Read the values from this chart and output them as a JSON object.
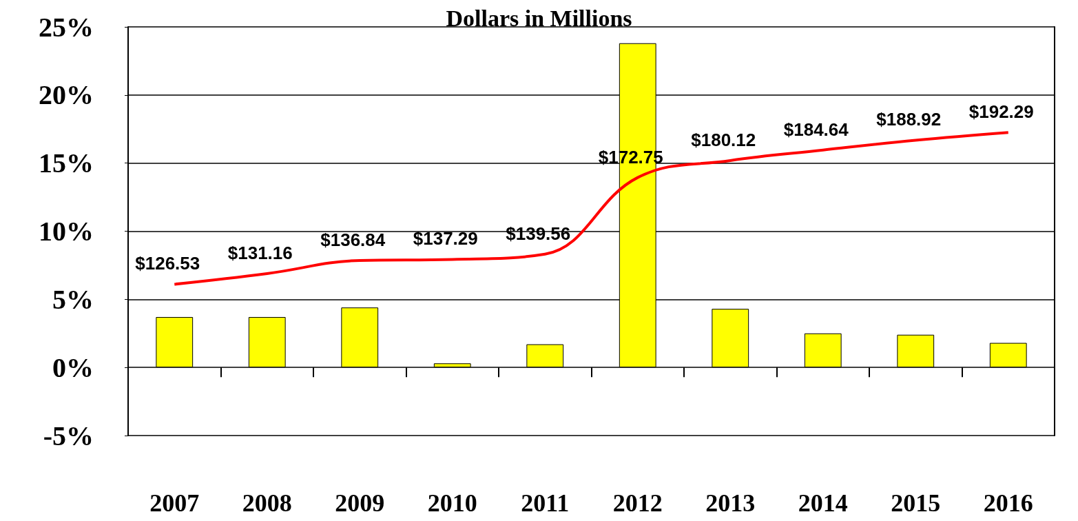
{
  "chart_data": {
    "type": "bar",
    "title": "Dollars in Millions",
    "categories": [
      "2007",
      "2008",
      "2009",
      "2010",
      "2011",
      "2012",
      "2013",
      "2014",
      "2015",
      "2016"
    ],
    "series": [
      {
        "color": "#ffff00",
        "values": [
          3.7,
          3.7,
          4.4,
          0.3,
          1.7,
          23.8,
          4.3,
          2.5,
          2.4,
          1.8
        ]
      },
      {
        "type": "line",
        "axis": "y2",
        "color": "#ff0000",
        "values": [
          126.53,
          131.16,
          136.84,
          137.29,
          139.56,
          172.75,
          180.12,
          184.64,
          188.92,
          192.29
        ],
        "value_labels": [
          "$126.53",
          "$131.16",
          "$136.84",
          "$137.29",
          "$139.56",
          "$172.75",
          "$180.12",
          "$184.64",
          "$188.92",
          "$192.29"
        ]
      }
    ],
    "ylim": [
      -5,
      25
    ],
    "yticks": [
      {
        "value": -5,
        "label": "-5%"
      },
      {
        "value": 0,
        "label": "0%"
      },
      {
        "value": 5,
        "label": "5%"
      },
      {
        "value": 10,
        "label": "10%"
      },
      {
        "value": 15,
        "label": "15%"
      },
      {
        "value": 20,
        "label": "20%"
      },
      {
        "value": 25,
        "label": "25%"
      }
    ],
    "y2lim": [
      61,
      238
    ],
    "grid": "y",
    "marker": "none",
    "line_style": "solid"
  }
}
